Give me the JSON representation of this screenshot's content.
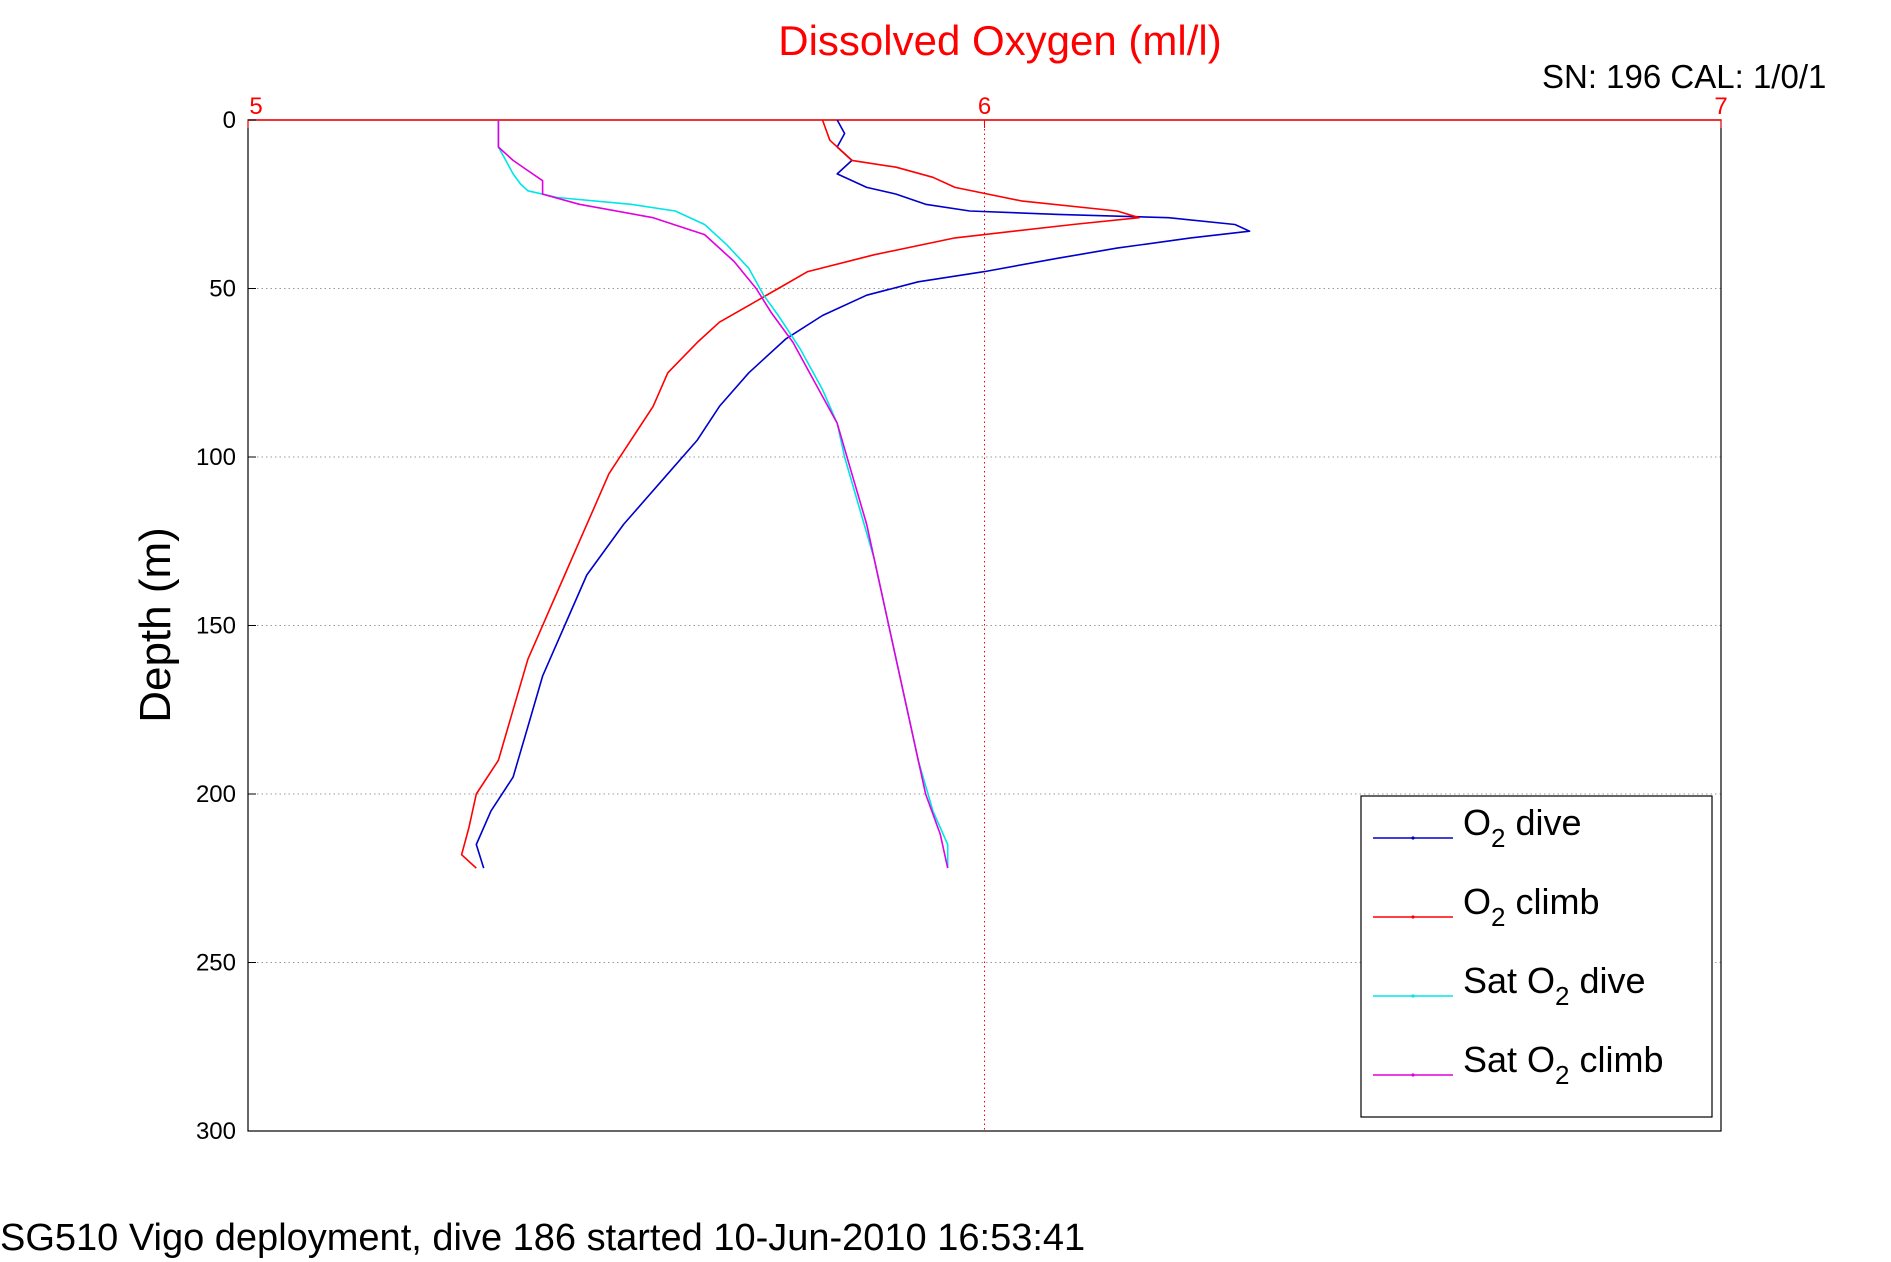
{
  "chart_data": {
    "type": "line",
    "title": "Dissolved Oxygen (ml/l)",
    "calibration_label": "SN: 196  CAL: 1/0/1",
    "footer": "SG510 Vigo deployment, dive 186 started 10-Jun-2010 16:53:41",
    "xlabel": "",
    "ylabel": "Depth (m)",
    "x_axis_position": "top",
    "y_axis_reversed": true,
    "xlim": [
      5,
      7
    ],
    "ylim": [
      0,
      300
    ],
    "x_ticks": [
      "5",
      "6",
      "7"
    ],
    "y_ticks": [
      "0",
      "50",
      "100",
      "150",
      "200",
      "250",
      "300"
    ],
    "grid": true,
    "legend_position": "bottom-right",
    "colors": {
      "title": "#ff0000",
      "xaxis": "#ff0000",
      "grid": "#999999"
    },
    "series": [
      {
        "name": "dive",
        "legend_prefix": "O",
        "legend_sub": "2",
        "color": "#0000cc",
        "points": [
          [
            5.8,
            0
          ],
          [
            5.81,
            4
          ],
          [
            5.8,
            8
          ],
          [
            5.82,
            12
          ],
          [
            5.8,
            16
          ],
          [
            5.84,
            20
          ],
          [
            5.88,
            22
          ],
          [
            5.92,
            25
          ],
          [
            5.98,
            27
          ],
          [
            6.1,
            28
          ],
          [
            6.25,
            29
          ],
          [
            6.34,
            31
          ],
          [
            6.36,
            33
          ],
          [
            6.28,
            35
          ],
          [
            6.18,
            38
          ],
          [
            6.1,
            41
          ],
          [
            6.0,
            45
          ],
          [
            5.91,
            48
          ],
          [
            5.84,
            52
          ],
          [
            5.78,
            58
          ],
          [
            5.73,
            65
          ],
          [
            5.68,
            75
          ],
          [
            5.64,
            85
          ],
          [
            5.61,
            95
          ],
          [
            5.57,
            105
          ],
          [
            5.51,
            120
          ],
          [
            5.46,
            135
          ],
          [
            5.43,
            150
          ],
          [
            5.4,
            165
          ],
          [
            5.38,
            180
          ],
          [
            5.36,
            195
          ],
          [
            5.33,
            205
          ],
          [
            5.31,
            215
          ],
          [
            5.32,
            222
          ]
        ]
      },
      {
        "name": "climb",
        "legend_prefix": "O",
        "legend_sub": "2",
        "color": "#ff0000",
        "points": [
          [
            5.78,
            0
          ],
          [
            5.79,
            6
          ],
          [
            5.82,
            12
          ],
          [
            5.88,
            14
          ],
          [
            5.93,
            17
          ],
          [
            5.96,
            20
          ],
          [
            6.05,
            24
          ],
          [
            6.18,
            27
          ],
          [
            6.21,
            29
          ],
          [
            6.12,
            31
          ],
          [
            5.96,
            35
          ],
          [
            5.85,
            40
          ],
          [
            5.76,
            45
          ],
          [
            5.72,
            50
          ],
          [
            5.68,
            55
          ],
          [
            5.64,
            60
          ],
          [
            5.61,
            66
          ],
          [
            5.57,
            75
          ],
          [
            5.55,
            85
          ],
          [
            5.52,
            95
          ],
          [
            5.49,
            105
          ],
          [
            5.47,
            115
          ],
          [
            5.45,
            125
          ],
          [
            5.43,
            135
          ],
          [
            5.41,
            145
          ],
          [
            5.38,
            160
          ],
          [
            5.36,
            175
          ],
          [
            5.34,
            190
          ],
          [
            5.31,
            200
          ],
          [
            5.3,
            210
          ],
          [
            5.29,
            218
          ],
          [
            5.31,
            222
          ]
        ]
      },
      {
        "name": "dive",
        "legend_prefix": "Sat O",
        "legend_sub": "2",
        "color": "#00e5e5",
        "points": [
          [
            5.34,
            0
          ],
          [
            5.34,
            8
          ],
          [
            5.35,
            12
          ],
          [
            5.36,
            16
          ],
          [
            5.37,
            19
          ],
          [
            5.38,
            21
          ],
          [
            5.42,
            23
          ],
          [
            5.52,
            25
          ],
          [
            5.58,
            27
          ],
          [
            5.62,
            31
          ],
          [
            5.65,
            37
          ],
          [
            5.68,
            44
          ],
          [
            5.7,
            52
          ],
          [
            5.72,
            58
          ],
          [
            5.75,
            68
          ],
          [
            5.78,
            80
          ],
          [
            5.8,
            90
          ],
          [
            5.81,
            100
          ],
          [
            5.83,
            115
          ],
          [
            5.85,
            130
          ],
          [
            5.87,
            150
          ],
          [
            5.89,
            170
          ],
          [
            5.91,
            190
          ],
          [
            5.93,
            205
          ],
          [
            5.95,
            215
          ],
          [
            5.95,
            222
          ]
        ]
      },
      {
        "name": "climb",
        "legend_prefix": "Sat O",
        "legend_sub": "2",
        "color": "#e000e0",
        "points": [
          [
            5.34,
            0
          ],
          [
            5.34,
            8
          ],
          [
            5.36,
            12
          ],
          [
            5.38,
            15
          ],
          [
            5.4,
            18
          ],
          [
            5.4,
            22
          ],
          [
            5.45,
            25
          ],
          [
            5.55,
            29
          ],
          [
            5.62,
            34
          ],
          [
            5.66,
            42
          ],
          [
            5.69,
            50
          ],
          [
            5.71,
            57
          ],
          [
            5.74,
            66
          ],
          [
            5.77,
            78
          ],
          [
            5.8,
            90
          ],
          [
            5.82,
            105
          ],
          [
            5.84,
            120
          ],
          [
            5.86,
            140
          ],
          [
            5.88,
            160
          ],
          [
            5.9,
            180
          ],
          [
            5.92,
            200
          ],
          [
            5.94,
            212
          ],
          [
            5.95,
            222
          ]
        ]
      }
    ]
  }
}
